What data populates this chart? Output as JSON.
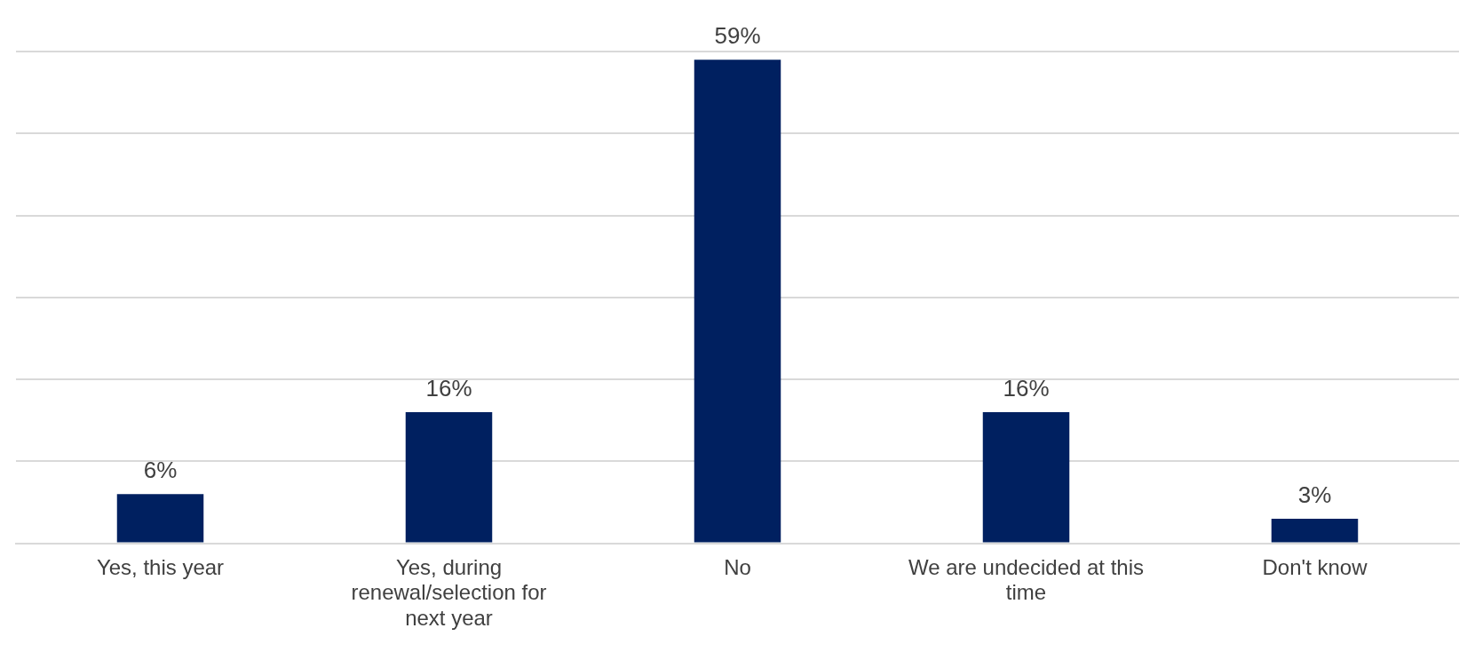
{
  "chart_data": {
    "type": "bar",
    "categories": [
      "Yes, this year",
      "Yes, during renewal/selection for next year",
      "No",
      "We are undecided at this time",
      "Don't know"
    ],
    "values": [
      6,
      16,
      59,
      16,
      3
    ],
    "color": "#002060",
    "ylim": [
      0,
      60
    ],
    "yticks": [
      {
        "value": 0,
        "label": null
      },
      {
        "value": 10,
        "label": null
      },
      {
        "value": 20,
        "label": null
      },
      {
        "value": 30,
        "label": null
      },
      {
        "value": 40,
        "label": null
      },
      {
        "value": 50,
        "label": null
      },
      {
        "value": 60,
        "label": null
      }
    ],
    "value_labels": [
      "6%",
      "16%",
      "59%",
      "16%",
      "3%"
    ],
    "grid": "y",
    "tick_labels": "x",
    "legend": false
  }
}
